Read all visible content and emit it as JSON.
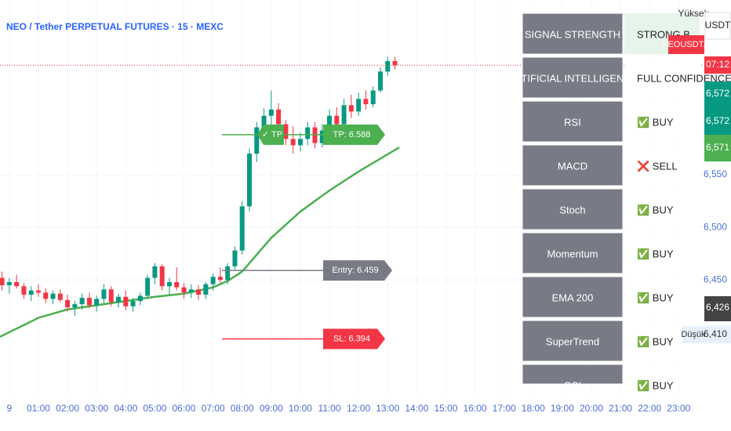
{
  "chart_data": {
    "type": "candlestick",
    "title": "NEO / Tether PERPETUAL FUTURES · 15 · MEXC",
    "xlim": [
      -0.32,
      23.8
    ],
    "ylim": [
      6.34,
      6.716
    ],
    "grid": true,
    "up_color": "#089981",
    "down_color": "#f23645",
    "xticks": [
      {
        "value": 0,
        "label": "9"
      },
      {
        "value": 1,
        "label": "01:00"
      },
      {
        "value": 2,
        "label": "02:00"
      },
      {
        "value": 3,
        "label": "03:00"
      },
      {
        "value": 4,
        "label": "04:00"
      },
      {
        "value": 5,
        "label": "05:00"
      },
      {
        "value": 6,
        "label": "06:00"
      },
      {
        "value": 7,
        "label": "07:00"
      },
      {
        "value": 8,
        "label": "08:00"
      },
      {
        "value": 9,
        "label": "09:00"
      },
      {
        "value": 10,
        "label": "10:00"
      },
      {
        "value": 11,
        "label": "11:00"
      },
      {
        "value": 12,
        "label": "12:00"
      },
      {
        "value": 13,
        "label": "13:00"
      },
      {
        "value": 14,
        "label": "14:00"
      },
      {
        "value": 15,
        "label": "15:00"
      },
      {
        "value": 16,
        "label": "16:00"
      },
      {
        "value": 17,
        "label": "17:00"
      },
      {
        "value": 18,
        "label": "18:00"
      },
      {
        "value": 19,
        "label": "19:00"
      },
      {
        "value": 20,
        "label": "20:00"
      },
      {
        "value": 21,
        "label": "21:00"
      },
      {
        "value": 22,
        "label": "22:00"
      },
      {
        "value": 23,
        "label": "23:00"
      }
    ],
    "yticks": [
      {
        "value": 6.45,
        "label": "6,450"
      },
      {
        "value": 6.5,
        "label": "6,500"
      },
      {
        "value": 6.55,
        "label": "6,550"
      }
    ],
    "x": [
      -0.25,
      0,
      0.25,
      0.5,
      0.75,
      1,
      1.25,
      1.5,
      1.75,
      2,
      2.25,
      2.5,
      2.75,
      3,
      3.25,
      3.5,
      3.75,
      4,
      4.25,
      4.5,
      4.75,
      5,
      5.25,
      5.5,
      5.75,
      6,
      6.25,
      6.5,
      6.75,
      7,
      7.25,
      7.5,
      7.75,
      8,
      8.25,
      8.5,
      8.75,
      9,
      9.25,
      9.5,
      9.75,
      10,
      10.25,
      10.5,
      10.75,
      11,
      11.25,
      11.5,
      11.75,
      12,
      12.25,
      12.5,
      12.75,
      13,
      13.25
    ],
    "open": [
      6.452,
      6.445,
      6.448,
      6.444,
      6.436,
      6.44,
      6.438,
      6.432,
      6.437,
      6.431,
      6.424,
      6.427,
      6.433,
      6.426,
      6.432,
      6.441,
      6.429,
      6.434,
      6.425,
      6.43,
      6.435,
      6.452,
      6.463,
      6.444,
      6.448,
      6.443,
      6.438,
      6.441,
      6.436,
      6.446,
      6.453,
      6.45,
      6.463,
      6.478,
      6.52,
      6.57,
      6.595,
      6.606,
      6.612,
      6.598,
      6.584,
      6.578,
      6.584,
      6.595,
      6.58,
      6.592,
      6.606,
      6.598,
      6.616,
      6.61,
      6.622,
      6.617,
      6.63,
      6.648,
      6.658
    ],
    "high": [
      6.458,
      6.452,
      6.455,
      6.447,
      6.444,
      6.446,
      6.442,
      6.44,
      6.441,
      6.436,
      6.43,
      6.437,
      6.438,
      6.435,
      6.446,
      6.444,
      6.437,
      6.44,
      6.433,
      6.438,
      6.455,
      6.466,
      6.465,
      6.452,
      6.462,
      6.447,
      6.446,
      6.445,
      6.448,
      6.456,
      6.462,
      6.466,
      6.482,
      6.525,
      6.575,
      6.6,
      6.613,
      6.63,
      6.618,
      6.602,
      6.596,
      6.59,
      6.6,
      6.6,
      6.598,
      6.612,
      6.614,
      6.622,
      6.626,
      6.628,
      6.63,
      6.634,
      6.652,
      6.662,
      6.662
    ],
    "low": [
      6.44,
      6.437,
      6.442,
      6.432,
      6.43,
      6.434,
      6.428,
      6.427,
      6.429,
      6.42,
      6.416,
      6.422,
      6.423,
      6.42,
      6.428,
      6.425,
      6.424,
      6.421,
      6.42,
      6.426,
      6.432,
      6.446,
      6.44,
      6.436,
      6.44,
      6.432,
      6.433,
      6.431,
      6.432,
      6.44,
      6.447,
      6.446,
      6.46,
      6.474,
      6.515,
      6.562,
      6.586,
      6.595,
      6.592,
      6.578,
      6.57,
      6.572,
      6.578,
      6.575,
      6.576,
      6.588,
      6.592,
      6.594,
      6.604,
      6.606,
      6.612,
      6.614,
      6.628,
      6.644,
      6.65
    ],
    "close": [
      6.445,
      6.448,
      6.444,
      6.436,
      6.44,
      6.438,
      6.432,
      6.437,
      6.431,
      6.424,
      6.427,
      6.433,
      6.426,
      6.432,
      6.441,
      6.429,
      6.434,
      6.425,
      6.43,
      6.435,
      6.452,
      6.463,
      6.444,
      6.448,
      6.443,
      6.438,
      6.441,
      6.436,
      6.446,
      6.453,
      6.45,
      6.463,
      6.478,
      6.52,
      6.57,
      6.595,
      6.606,
      6.612,
      6.598,
      6.584,
      6.578,
      6.584,
      6.595,
      6.58,
      6.592,
      6.606,
      6.598,
      6.616,
      6.61,
      6.622,
      6.617,
      6.63,
      6.648,
      6.658,
      6.654
    ],
    "ema": {
      "color": "#4caf50",
      "x": [
        -0.32,
        1,
        2,
        3,
        4,
        5,
        6,
        7,
        7.5,
        8,
        9,
        10,
        11,
        12,
        13.4
      ],
      "values": [
        6.396,
        6.414,
        6.422,
        6.426,
        6.43,
        6.434,
        6.437,
        6.443,
        6.449,
        6.458,
        6.49,
        6.515,
        6.535,
        6.553,
        6.576
      ]
    },
    "levels": [
      {
        "label": "TP: 6.588",
        "value": 6.588,
        "color": "#4caf50"
      },
      {
        "label": "Entry: 6.459",
        "value": 6.459,
        "color": "#787b86"
      },
      {
        "label": "SL: 6.394",
        "value": 6.394,
        "color": "#f23645"
      }
    ],
    "tp_badge": "✓ TP"
  },
  "panel": {
    "rows": [
      [
        "SIGNAL STRENGTH",
        "STRONG B"
      ],
      [
        "ARTIFICIAL INTELLIGENCE",
        "FULL CONFIDENCE"
      ],
      [
        "RSI",
        "✅ BUY"
      ],
      [
        "MACD",
        "❌ SELL"
      ],
      [
        "Stoch",
        "✅ BUY"
      ],
      [
        "Momentum",
        "✅ BUY"
      ],
      [
        "EMA 200",
        "✅ BUY"
      ],
      [
        "SuperTrend",
        "✅ BUY"
      ],
      [
        "CCI",
        "✅ BUY"
      ]
    ]
  },
  "price_scale": {
    "high": "Yüksek",
    "currency": "USDT",
    "symbol": "NEOUSDT.P",
    "countdown": "07:12",
    "badges": [
      "6,572",
      "6,572",
      "6,571",
      "6,426"
    ],
    "low": "Düşük",
    "low_value": "6,410"
  }
}
